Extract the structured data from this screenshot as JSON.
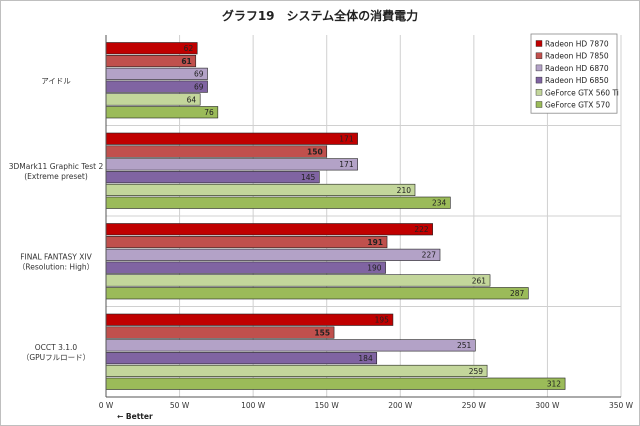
{
  "chart_data": {
    "type": "bar",
    "orientation": "horizontal",
    "title": "グラフ19　システム全体の消費電力",
    "categories": [
      [
        "アイドル"
      ],
      [
        "3DMark11 Graphic Test 2",
        "(Extreme preset)"
      ],
      [
        "FINAL FANTASY XIV",
        "（Resolution: High）"
      ],
      [
        "OCCT 3.1.0",
        "（GPUフルロード）"
      ]
    ],
    "series": [
      {
        "name": "Radeon HD 7870",
        "color": "#c00000",
        "values": [
          62,
          171,
          222,
          195
        ]
      },
      {
        "name": "Radeon HD 7850",
        "color": "#c0504d",
        "values": [
          61,
          150,
          191,
          155
        ]
      },
      {
        "name": "Radeon HD 6870",
        "color": "#b3a2c7",
        "values": [
          69,
          171,
          227,
          251
        ]
      },
      {
        "name": "Radeon HD 6850",
        "color": "#8064a2",
        "values": [
          69,
          145,
          190,
          184
        ]
      },
      {
        "name": "GeForce GTX 560 Ti",
        "color": "#c3d69b",
        "values": [
          64,
          210,
          261,
          259
        ]
      },
      {
        "name": "GeForce GTX 570",
        "color": "#9bbb59",
        "values": [
          76,
          234,
          287,
          312
        ]
      }
    ],
    "bold_series_labels": [
      "Radeon HD 7850"
    ],
    "xlim": [
      0,
      350
    ],
    "xticks": [
      "0 W",
      "50 W",
      "100 W",
      "150 W",
      "200 W",
      "250 W",
      "300 W",
      "350 W"
    ],
    "x_note": "← Better",
    "grid": true,
    "legend_position": "top-right"
  }
}
